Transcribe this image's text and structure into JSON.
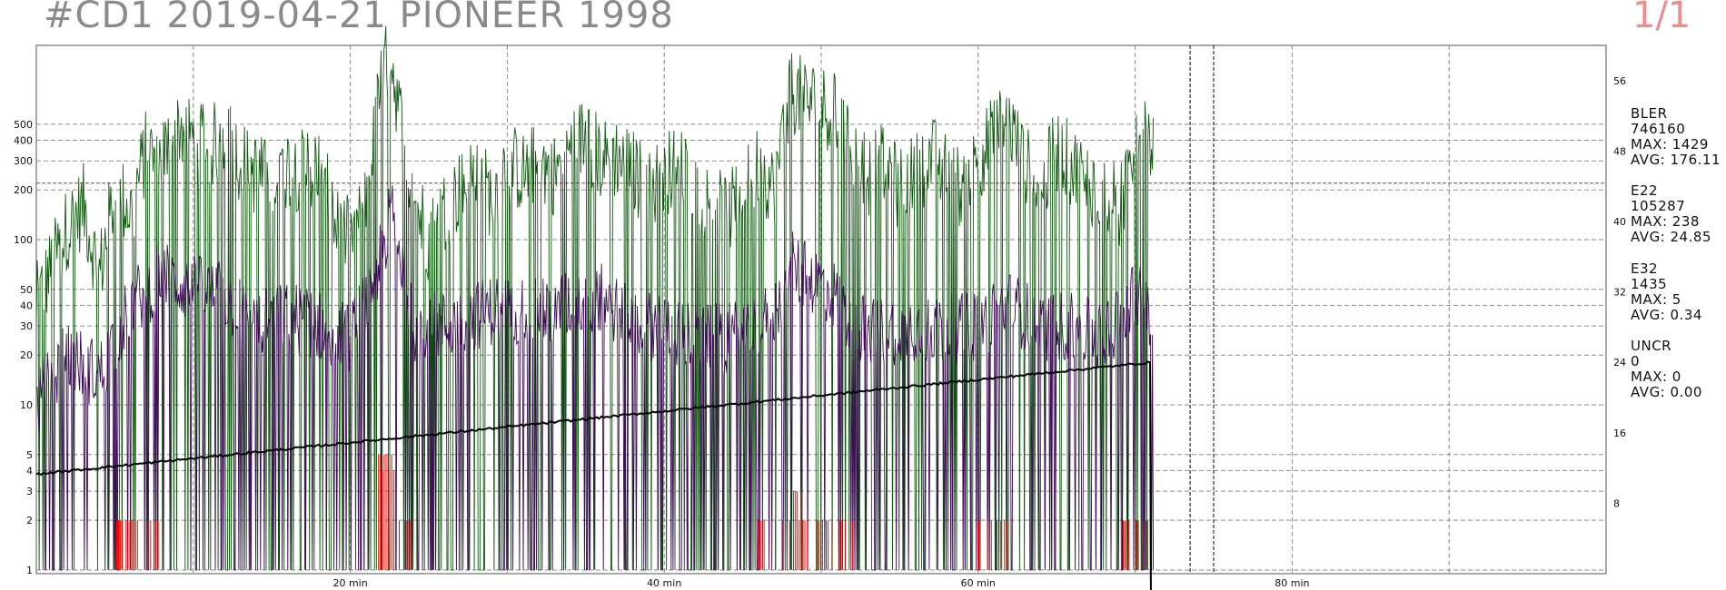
{
  "header": {
    "title": "#CD1 2019-04-21 PIONEER 1998",
    "page": "1/1"
  },
  "colors": {
    "bler": "#0f5a0f",
    "e22": "#3d0a55",
    "e32": "#ff0000",
    "speed": "#000000",
    "grid": "#8c8c8c",
    "threshold": "#dd2222",
    "title": "#8a8a8a",
    "page": "#f08c8c"
  },
  "stats": [
    {
      "name": "BLER",
      "total": "746160",
      "max": "MAX: 1429",
      "avg": "AVG: 176.11"
    },
    {
      "name": "E22",
      "total": "105287",
      "max": "MAX: 238",
      "avg": "AVG: 24.85"
    },
    {
      "name": "E32",
      "total": "1435",
      "max": "MAX: 5",
      "avg": "AVG: 0.34"
    },
    {
      "name": "UNCR",
      "total": "0",
      "max": "MAX: 0",
      "avg": "AVG: 0.00"
    }
  ],
  "chart_data": {
    "type": "line",
    "x_unit": "min",
    "xlim": [
      0,
      100
    ],
    "x_ticks": [
      {
        "value": 20,
        "label": "20 min"
      },
      {
        "value": 40,
        "label": "40 min"
      },
      {
        "value": 60,
        "label": "60 min"
      },
      {
        "value": 80,
        "label": "80 min"
      }
    ],
    "y_scale": "log",
    "ylim": [
      0.95,
      1500
    ],
    "y_ticks": [
      1,
      2,
      3,
      4,
      5,
      10,
      20,
      30,
      40,
      50,
      100,
      200,
      300,
      400,
      500
    ],
    "y2lim": [
      0,
      60
    ],
    "y2_ticks": [
      8,
      16,
      24,
      32,
      40,
      48,
      56
    ],
    "threshold": 220,
    "disc_end_min": 71.2,
    "markers": [
      73.5,
      75
    ],
    "grid": true,
    "series": [
      {
        "name": "BLER",
        "axis": "left",
        "render": "spiky",
        "values": [
          [
            0,
            40
          ],
          [
            2,
            120
          ],
          [
            3,
            160
          ],
          [
            4,
            60
          ],
          [
            5,
            200
          ],
          [
            6,
            150
          ],
          [
            7,
            350
          ],
          [
            8,
            300
          ],
          [
            9,
            500
          ],
          [
            10,
            400
          ],
          [
            11,
            350
          ],
          [
            12,
            450
          ],
          [
            13,
            300
          ],
          [
            14,
            250
          ],
          [
            15,
            220
          ],
          [
            16,
            280
          ],
          [
            17,
            260
          ],
          [
            18,
            300
          ],
          [
            19,
            120
          ],
          [
            20,
            100
          ],
          [
            21,
            160
          ],
          [
            22,
            1000
          ],
          [
            22.6,
            1300
          ],
          [
            23,
            700
          ],
          [
            24,
            180
          ],
          [
            25,
            100
          ],
          [
            26,
            150
          ],
          [
            27,
            200
          ],
          [
            28,
            250
          ],
          [
            29,
            180
          ],
          [
            30,
            300
          ],
          [
            31,
            250
          ],
          [
            32,
            300
          ],
          [
            33,
            250
          ],
          [
            34,
            350
          ],
          [
            35,
            430
          ],
          [
            36,
            300
          ],
          [
            37,
            320
          ],
          [
            38,
            260
          ],
          [
            39,
            200
          ],
          [
            40,
            250
          ],
          [
            41,
            280
          ],
          [
            42,
            200
          ],
          [
            43,
            160
          ],
          [
            44,
            140
          ],
          [
            45,
            180
          ],
          [
            46,
            300
          ],
          [
            47,
            200
          ],
          [
            48,
            800
          ],
          [
            49,
            700
          ],
          [
            50,
            650
          ],
          [
            50.8,
            600
          ],
          [
            51,
            500
          ],
          [
            52,
            380
          ],
          [
            53,
            250
          ],
          [
            54,
            280
          ],
          [
            55,
            200
          ],
          [
            56,
            250
          ],
          [
            57,
            320
          ],
          [
            58,
            250
          ],
          [
            59,
            200
          ],
          [
            60,
            300
          ],
          [
            61,
            450
          ],
          [
            62,
            500
          ],
          [
            63,
            280
          ],
          [
            64,
            200
          ],
          [
            65,
            350
          ],
          [
            66,
            280
          ],
          [
            67,
            220
          ],
          [
            68,
            200
          ],
          [
            69,
            150
          ],
          [
            70,
            420
          ],
          [
            71,
            400
          ]
        ]
      },
      {
        "name": "E22",
        "axis": "left",
        "render": "spiky",
        "values": [
          [
            0,
            10
          ],
          [
            2,
            20
          ],
          [
            4,
            15
          ],
          [
            6,
            40
          ],
          [
            8,
            60
          ],
          [
            10,
            50
          ],
          [
            12,
            45
          ],
          [
            14,
            30
          ],
          [
            16,
            35
          ],
          [
            18,
            30
          ],
          [
            20,
            25
          ],
          [
            21,
            40
          ],
          [
            22,
            80
          ],
          [
            22.6,
            150
          ],
          [
            23,
            100
          ],
          [
            24,
            30
          ],
          [
            26,
            30
          ],
          [
            28,
            35
          ],
          [
            30,
            40
          ],
          [
            32,
            35
          ],
          [
            34,
            40
          ],
          [
            36,
            45
          ],
          [
            38,
            30
          ],
          [
            40,
            30
          ],
          [
            42,
            25
          ],
          [
            44,
            25
          ],
          [
            46,
            30
          ],
          [
            47,
            35
          ],
          [
            48,
            70
          ],
          [
            49,
            60
          ],
          [
            50,
            55
          ],
          [
            51,
            45
          ],
          [
            52,
            30
          ],
          [
            54,
            28
          ],
          [
            56,
            30
          ],
          [
            58,
            28
          ],
          [
            60,
            30
          ],
          [
            62,
            40
          ],
          [
            64,
            30
          ],
          [
            66,
            30
          ],
          [
            68,
            25
          ],
          [
            70,
            50
          ],
          [
            71,
            30
          ]
        ]
      },
      {
        "name": "E32",
        "axis": "left",
        "render": "clusters",
        "clusters": [
          [
            1,
            5,
            1
          ],
          [
            5,
            8,
            2
          ],
          [
            8,
            14,
            1
          ],
          [
            18,
            21,
            1
          ],
          [
            21.8,
            23,
            5
          ],
          [
            23,
            24,
            2
          ],
          [
            26,
            28,
            1
          ],
          [
            35,
            37,
            1
          ],
          [
            42,
            46,
            1
          ],
          [
            46,
            48,
            2
          ],
          [
            48,
            49,
            3
          ],
          [
            49,
            52,
            2
          ],
          [
            54,
            58,
            1
          ],
          [
            60,
            62,
            2
          ],
          [
            62,
            68,
            1
          ],
          [
            69,
            71,
            2
          ]
        ]
      },
      {
        "name": "UNCR",
        "axis": "left",
        "render": "none",
        "values": []
      },
      {
        "name": "speed",
        "axis": "right",
        "render": "line",
        "values": [
          [
            0,
            11.3
          ],
          [
            71,
            24
          ]
        ]
      }
    ]
  }
}
